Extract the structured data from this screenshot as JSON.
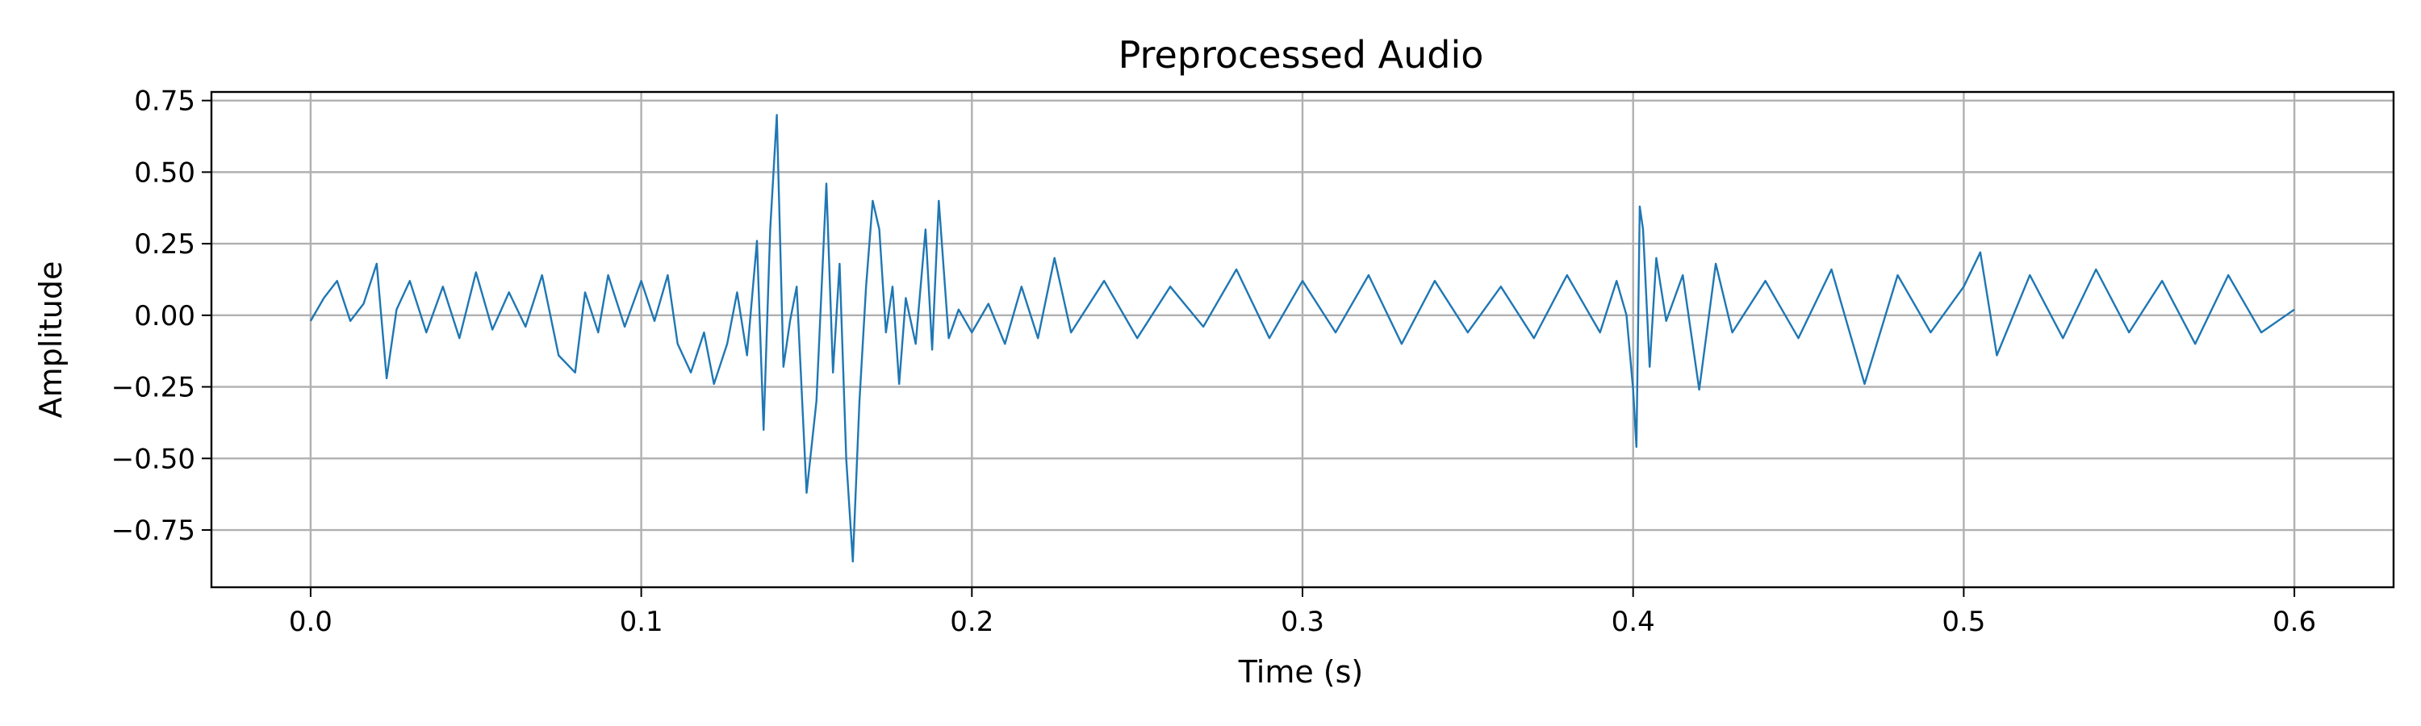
{
  "chart_data": {
    "type": "line",
    "title": "Preprocessed Audio",
    "xlabel": "Time (s)",
    "ylabel": "Amplitude",
    "xlim": [
      -0.03,
      0.63
    ],
    "ylim": [
      -0.95,
      0.78
    ],
    "xticks": [
      0.0,
      0.1,
      0.2,
      0.3,
      0.4,
      0.5,
      0.6
    ],
    "xtick_labels": [
      "0.0",
      "0.1",
      "0.2",
      "0.3",
      "0.4",
      "0.5",
      "0.6"
    ],
    "yticks": [
      0.75,
      0.5,
      0.25,
      0.0,
      -0.25,
      -0.5,
      -0.75
    ],
    "ytick_labels": [
      "0.75",
      "0.50",
      "0.25",
      "0.00",
      "−0.25",
      "−0.50",
      "−0.75"
    ],
    "grid": true,
    "series_color": "#1f77b4",
    "series": [
      {
        "x": [
          0.0,
          0.004,
          0.008,
          0.012,
          0.016,
          0.02,
          0.023,
          0.026,
          0.03,
          0.035,
          0.04,
          0.045,
          0.05,
          0.055,
          0.06,
          0.065,
          0.07,
          0.075,
          0.08,
          0.083,
          0.087,
          0.09,
          0.095,
          0.1,
          0.104,
          0.108,
          0.111,
          0.115,
          0.119,
          0.122,
          0.126,
          0.129,
          0.132,
          0.135,
          0.137,
          0.139,
          0.141,
          0.143,
          0.145,
          0.147,
          0.15,
          0.153,
          0.156,
          0.158,
          0.16,
          0.162,
          0.164,
          0.166,
          0.168,
          0.17,
          0.172,
          0.174,
          0.176,
          0.178,
          0.18,
          0.183,
          0.186,
          0.188,
          0.19,
          0.193,
          0.196,
          0.2,
          0.205,
          0.21,
          0.215,
          0.22,
          0.225,
          0.23,
          0.24,
          0.25,
          0.26,
          0.27,
          0.28,
          0.29,
          0.3,
          0.31,
          0.32,
          0.33,
          0.34,
          0.35,
          0.36,
          0.37,
          0.38,
          0.39,
          0.395,
          0.398,
          0.4,
          0.401,
          0.402,
          0.403,
          0.405,
          0.407,
          0.41,
          0.415,
          0.42,
          0.425,
          0.43,
          0.44,
          0.45,
          0.46,
          0.47,
          0.48,
          0.49,
          0.5,
          0.505,
          0.51,
          0.52,
          0.53,
          0.54,
          0.55,
          0.56,
          0.57,
          0.58,
          0.59,
          0.6
        ],
        "y": [
          -0.02,
          0.06,
          0.12,
          -0.02,
          0.04,
          0.18,
          -0.22,
          0.02,
          0.12,
          -0.06,
          0.1,
          -0.08,
          0.15,
          -0.05,
          0.08,
          -0.04,
          0.14,
          -0.14,
          -0.2,
          0.08,
          -0.06,
          0.14,
          -0.04,
          0.12,
          -0.02,
          0.14,
          -0.1,
          -0.2,
          -0.06,
          -0.24,
          -0.1,
          0.08,
          -0.14,
          0.26,
          -0.4,
          0.3,
          0.7,
          -0.18,
          -0.02,
          0.1,
          -0.62,
          -0.3,
          0.46,
          -0.2,
          0.18,
          -0.5,
          -0.86,
          -0.3,
          0.1,
          0.4,
          0.3,
          -0.06,
          0.1,
          -0.24,
          0.06,
          -0.1,
          0.3,
          -0.12,
          0.4,
          -0.08,
          0.02,
          -0.06,
          0.04,
          -0.1,
          0.1,
          -0.08,
          0.2,
          -0.06,
          0.12,
          -0.08,
          0.1,
          -0.04,
          0.16,
          -0.08,
          0.12,
          -0.06,
          0.14,
          -0.1,
          0.12,
          -0.06,
          0.1,
          -0.08,
          0.14,
          -0.06,
          0.12,
          0.0,
          -0.26,
          -0.46,
          0.38,
          0.3,
          -0.18,
          0.2,
          -0.02,
          0.14,
          -0.26,
          0.18,
          -0.06,
          0.12,
          -0.08,
          0.16,
          -0.24,
          0.14,
          -0.06,
          0.1,
          0.22,
          -0.14,
          0.14,
          -0.08,
          0.16,
          -0.06,
          0.12,
          -0.1,
          0.14,
          -0.06,
          0.02
        ]
      }
    ]
  }
}
